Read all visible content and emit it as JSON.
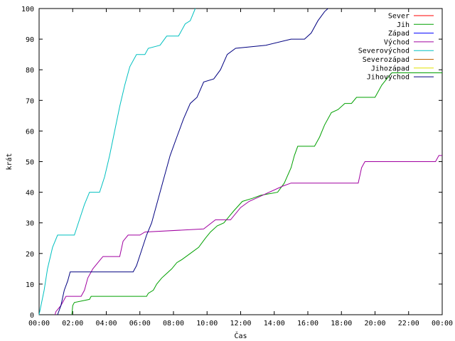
{
  "chart_data": {
    "type": "line",
    "title": "",
    "xlabel": "Čas",
    "ylabel": "krát",
    "xlim": [
      0,
      24
    ],
    "ylim": [
      0,
      100
    ],
    "x_ticks": [
      "00:00",
      "02:00",
      "04:00",
      "06:00",
      "08:00",
      "10:00",
      "12:00",
      "14:00",
      "16:00",
      "18:00",
      "20:00",
      "22:00",
      "00:00"
    ],
    "y_ticks": [
      0,
      10,
      20,
      30,
      40,
      50,
      60,
      70,
      80,
      90,
      100
    ],
    "grid": false,
    "legend_position": "top-right",
    "series": [
      {
        "name": "Sever",
        "color": "#ff0000",
        "points": []
      },
      {
        "name": "Jih",
        "color": "#00a000",
        "points": [
          [
            1.95,
            0
          ],
          [
            2.0,
            3
          ],
          [
            2.1,
            4
          ],
          [
            3.0,
            5
          ],
          [
            3.1,
            6
          ],
          [
            6.4,
            6
          ],
          [
            6.5,
            7
          ],
          [
            6.8,
            8
          ],
          [
            7.0,
            10
          ],
          [
            7.3,
            12
          ],
          [
            7.5,
            13
          ],
          [
            7.9,
            15
          ],
          [
            8.2,
            17
          ],
          [
            8.5,
            18
          ],
          [
            9.0,
            20
          ],
          [
            9.5,
            22
          ],
          [
            9.9,
            25
          ],
          [
            10.2,
            27
          ],
          [
            10.6,
            29
          ],
          [
            11.0,
            30
          ],
          [
            11.3,
            32
          ],
          [
            11.6,
            34
          ],
          [
            12.1,
            37
          ],
          [
            12.7,
            38
          ],
          [
            13.2,
            39
          ],
          [
            14.2,
            40
          ],
          [
            14.6,
            43
          ],
          [
            15.0,
            48
          ],
          [
            15.2,
            52
          ],
          [
            15.4,
            55
          ],
          [
            16.4,
            55
          ],
          [
            16.7,
            58
          ],
          [
            17.0,
            62
          ],
          [
            17.4,
            66
          ],
          [
            17.8,
            67
          ],
          [
            18.2,
            69
          ],
          [
            18.6,
            69
          ],
          [
            18.9,
            71
          ],
          [
            20.0,
            71
          ],
          [
            20.4,
            75
          ],
          [
            20.7,
            77
          ],
          [
            21.0,
            79
          ],
          [
            21.3,
            79
          ],
          [
            24.0,
            79
          ]
        ]
      },
      {
        "name": "Západ",
        "color": "#0000ff",
        "points": []
      },
      {
        "name": "Východ",
        "color": "#a000a0",
        "points": [
          [
            0.95,
            0
          ],
          [
            1.0,
            1
          ],
          [
            1.3,
            3
          ],
          [
            1.6,
            6
          ],
          [
            2.5,
            6
          ],
          [
            2.7,
            8
          ],
          [
            2.9,
            12
          ],
          [
            3.2,
            15
          ],
          [
            3.5,
            17
          ],
          [
            3.8,
            19
          ],
          [
            4.8,
            19
          ],
          [
            5.0,
            24
          ],
          [
            5.3,
            26
          ],
          [
            6.0,
            26
          ],
          [
            6.3,
            27
          ],
          [
            9.8,
            28
          ],
          [
            10.5,
            31
          ],
          [
            11.4,
            31
          ],
          [
            12.0,
            35
          ],
          [
            12.5,
            37
          ],
          [
            13.3,
            39
          ],
          [
            14.5,
            42
          ],
          [
            15.0,
            43
          ],
          [
            19.0,
            43
          ],
          [
            19.2,
            48
          ],
          [
            19.4,
            50
          ],
          [
            23.6,
            50
          ],
          [
            23.8,
            52
          ],
          [
            24.0,
            52
          ]
        ]
      },
      {
        "name": "Severovýchod",
        "color": "#00c0c0",
        "points": [
          [
            0.0,
            0
          ],
          [
            0.3,
            8
          ],
          [
            0.5,
            15
          ],
          [
            0.8,
            22
          ],
          [
            1.1,
            26
          ],
          [
            2.1,
            26
          ],
          [
            2.4,
            31
          ],
          [
            2.7,
            36
          ],
          [
            3.0,
            40
          ],
          [
            3.6,
            40
          ],
          [
            3.9,
            45
          ],
          [
            4.2,
            52
          ],
          [
            4.5,
            60
          ],
          [
            4.8,
            68
          ],
          [
            5.1,
            75
          ],
          [
            5.4,
            81
          ],
          [
            5.8,
            85
          ],
          [
            6.3,
            85
          ],
          [
            6.5,
            87
          ],
          [
            7.2,
            88
          ],
          [
            7.6,
            91
          ],
          [
            8.3,
            91
          ],
          [
            8.7,
            95
          ],
          [
            9.0,
            96
          ],
          [
            9.3,
            100
          ]
        ]
      },
      {
        "name": "Severozápad",
        "color": "#c06000",
        "points": []
      },
      {
        "name": "Jihozápad",
        "color": "#e0e000",
        "points": []
      },
      {
        "name": "Jihovýchod",
        "color": "#000080",
        "points": [
          [
            1.1,
            0
          ],
          [
            1.3,
            3
          ],
          [
            1.5,
            8
          ],
          [
            1.7,
            11
          ],
          [
            1.85,
            14
          ],
          [
            5.6,
            14
          ],
          [
            5.8,
            16
          ],
          [
            6.1,
            21
          ],
          [
            6.4,
            26
          ],
          [
            6.7,
            30
          ],
          [
            7.0,
            36
          ],
          [
            7.4,
            44
          ],
          [
            7.8,
            52
          ],
          [
            8.2,
            58
          ],
          [
            8.6,
            64
          ],
          [
            9.0,
            69
          ],
          [
            9.4,
            71
          ],
          [
            9.8,
            76
          ],
          [
            10.4,
            77
          ],
          [
            10.8,
            80
          ],
          [
            11.2,
            85
          ],
          [
            11.7,
            87
          ],
          [
            13.5,
            88
          ],
          [
            15.0,
            90
          ],
          [
            15.8,
            90
          ],
          [
            16.2,
            92
          ],
          [
            16.6,
            96
          ],
          [
            17.0,
            99
          ],
          [
            17.2,
            100
          ]
        ]
      }
    ]
  }
}
